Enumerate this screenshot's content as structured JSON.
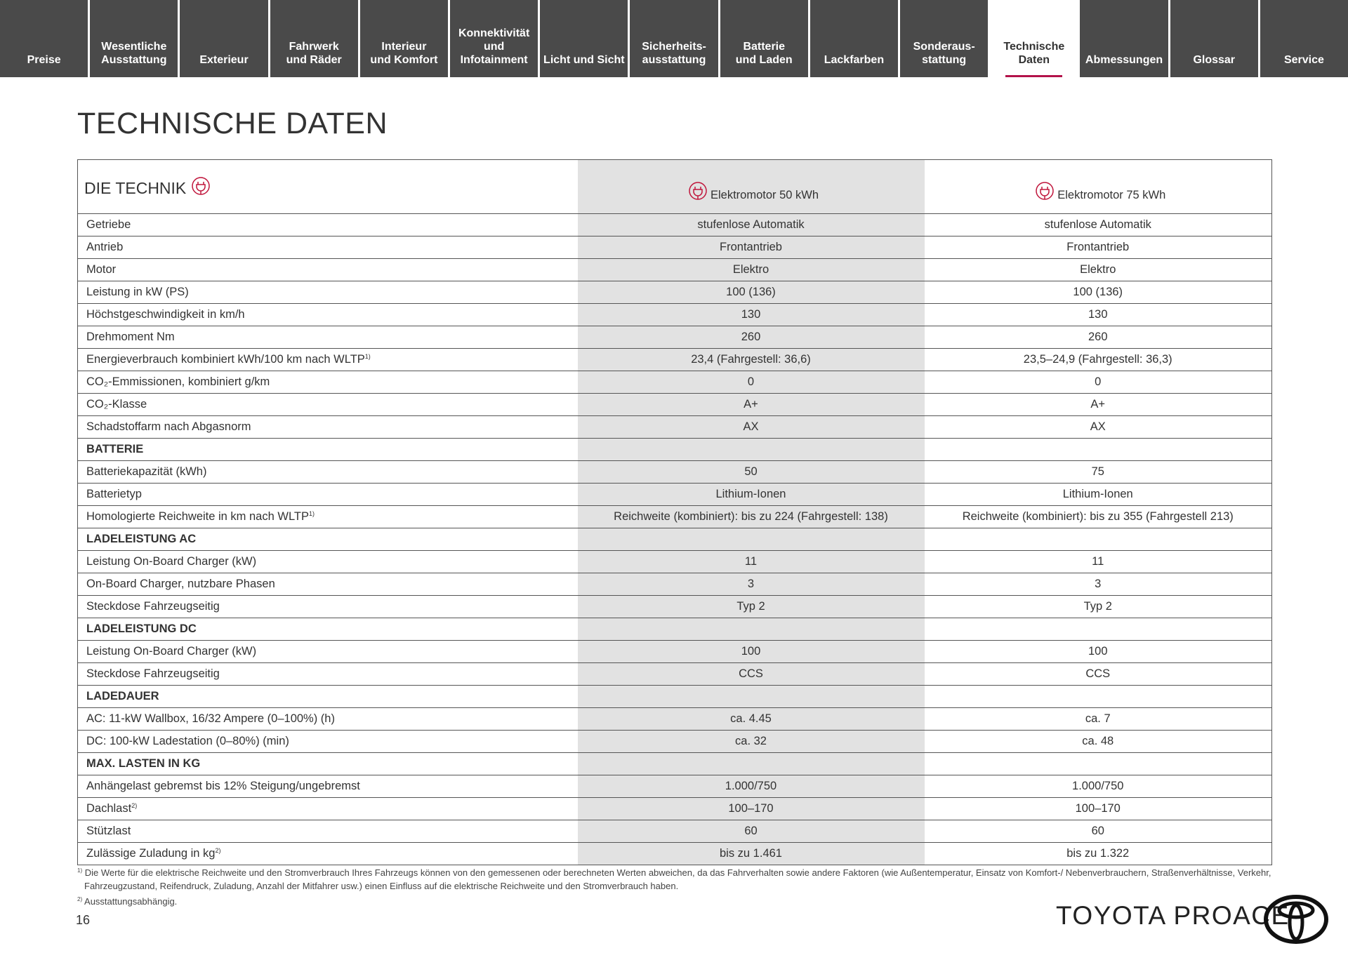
{
  "nav": {
    "tabs": [
      "Preise",
      "Wesentliche\nAusstattung",
      "Exterieur",
      "Fahrwerk\nund Räder",
      "Interieur\nund Komfort",
      "Konnektivität\nund\nInfotainment",
      "Licht und Sicht",
      "Sicherheits-\nausstattung",
      "Batterie\nund Laden",
      "Lackfarben",
      "Sonderaus-\nstattung",
      "Technische\nDaten",
      "Abmessungen",
      "Glossar",
      "Service"
    ],
    "active": 11
  },
  "header": {
    "title": "TECHNISCHE DATEN"
  },
  "table": {
    "heading": "DIE TECHNIK",
    "columns": [
      "Elektromotor 50 kWh",
      "Elektromotor 75 kWh"
    ],
    "rows": [
      {
        "label": "Getriebe",
        "values": [
          "stufenlose Automatik",
          "stufenlose Automatik"
        ]
      },
      {
        "label": "Antrieb",
        "values": [
          "Frontantrieb",
          "Frontantrieb"
        ]
      },
      {
        "label": "Motor",
        "values": [
          "Elektro",
          "Elektro"
        ]
      },
      {
        "label": "Leistung in kW (PS)",
        "values": [
          "100 (136)",
          "100 (136)"
        ]
      },
      {
        "label": "Höchstgeschwindigkeit in km/h",
        "values": [
          "130",
          "130"
        ]
      },
      {
        "label": "Drehmoment Nm",
        "values": [
          "260",
          "260"
        ]
      },
      {
        "label": "Energieverbrauch kombiniert kWh/100 km nach WLTP",
        "sup": "1)",
        "values": [
          "23,4 (Fahrgestell: 36,6)",
          "23,5–24,9 (Fahrgestell: 36,3)"
        ]
      },
      {
        "label": "CO₂-Emmissionen, kombiniert g/km",
        "values": [
          "0",
          "0"
        ]
      },
      {
        "label": "CO₂-Klasse",
        "values": [
          "A+",
          "A+"
        ]
      },
      {
        "label": "Schadstoffarm nach Abgasnorm",
        "values": [
          "AX",
          "AX"
        ]
      },
      {
        "label": "BATTERIE"
      },
      {
        "label": "Batteriekapazität (kWh)",
        "values": [
          "50",
          "75"
        ]
      },
      {
        "label": "Batterietyp",
        "values": [
          "Lithium-Ionen",
          "Lithium-Ionen"
        ]
      },
      {
        "label": "Homologierte Reichweite in km nach WLTP",
        "sup": "1)",
        "values": [
          "Reichweite (kombiniert): bis zu 224 (Fahrgestell: 138)",
          "Reichweite (kombiniert): bis zu 355 (Fahrgestell 213)"
        ]
      },
      {
        "label": "LADELEISTUNG AC"
      },
      {
        "label": "Leistung On-Board Charger (kW)",
        "values": [
          "11",
          "11"
        ]
      },
      {
        "label": "On-Board Charger, nutzbare Phasen",
        "values": [
          "3",
          "3"
        ]
      },
      {
        "label": "Steckdose Fahrzeugseitig",
        "values": [
          "Typ 2",
          "Typ 2"
        ]
      },
      {
        "label": "LADELEISTUNG DC"
      },
      {
        "label": "Leistung On-Board Charger (kW)",
        "values": [
          "100",
          "100"
        ]
      },
      {
        "label": "Steckdose Fahrzeugseitig",
        "values": [
          "CCS",
          "CCS"
        ]
      },
      {
        "label": "LADEDAUER"
      },
      {
        "label": "AC: 11-kW Wallbox, 16/32 Ampere (0–100%) (h)",
        "values": [
          "ca. 4.45",
          "ca. 7"
        ]
      },
      {
        "label": "DC: 100-kW Ladestation (0–80%) (min)",
        "values": [
          "ca. 32",
          "ca. 48"
        ]
      },
      {
        "label": "MAX. LASTEN IN KG"
      },
      {
        "label": "Anhängelast gebremst bis 12% Steigung/ungebremst",
        "values": [
          "1.000/750",
          "1.000/750"
        ]
      },
      {
        "label": "Dachlast",
        "sup": "2)",
        "values": [
          "100–170",
          "100–170"
        ]
      },
      {
        "label": "Stützlast",
        "values": [
          "60",
          "60"
        ]
      },
      {
        "label": "Zulässige Zuladung in kg",
        "sup": "2)",
        "values": [
          "bis zu 1.461",
          "bis zu 1.322"
        ]
      }
    ]
  },
  "footnotes": [
    {
      "marker": "1)",
      "text": "Die Werte für die elektrische Reichweite und den Stromverbrauch Ihres Fahrzeugs können von den gemessenen oder berechneten Werten abweichen, da das Fahrverhalten sowie andere Faktoren (wie Außentemperatur, Einsatz von Komfort-/ Nebenverbrauchern, Straßenverhältnisse, Verkehr, Fahrzeugzustand, Reifendruck, Zuladung, Anzahl der Mitfahrer usw.) einen Einfluss auf die elektrische Reichweite und den Stromverbrauch haben."
    },
    {
      "marker": "2)",
      "text": "Ausstattungsabhängig."
    }
  ],
  "footer": {
    "page": "16",
    "brand": "TOYOTA PROACE"
  }
}
